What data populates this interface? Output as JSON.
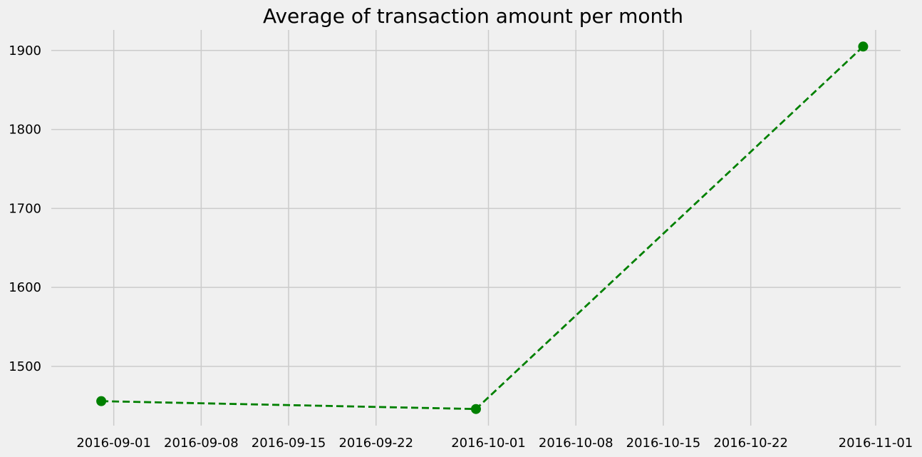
{
  "chart_data": {
    "type": "line",
    "title": "Average of transaction amount per month",
    "xlabel": "",
    "ylabel": "",
    "x_ticks": [
      "2016-09-01",
      "2016-09-08",
      "2016-09-15",
      "2016-09-22",
      "2016-10-01",
      "2016-10-08",
      "2016-10-15",
      "2016-10-22",
      "2016-11-01"
    ],
    "y_ticks": [
      1500,
      1600,
      1700,
      1800,
      1900
    ],
    "xlim": [
      "2016-08-27",
      "2016-11-03"
    ],
    "ylim": [
      1425,
      1926
    ],
    "grid": true,
    "series": [
      {
        "x": [
          "2016-08-31",
          "2016-09-30",
          "2016-10-31"
        ],
        "values": [
          1456,
          1446,
          1905
        ],
        "color": "#008000",
        "line_style": "dashed",
        "marker": "circle"
      }
    ]
  }
}
